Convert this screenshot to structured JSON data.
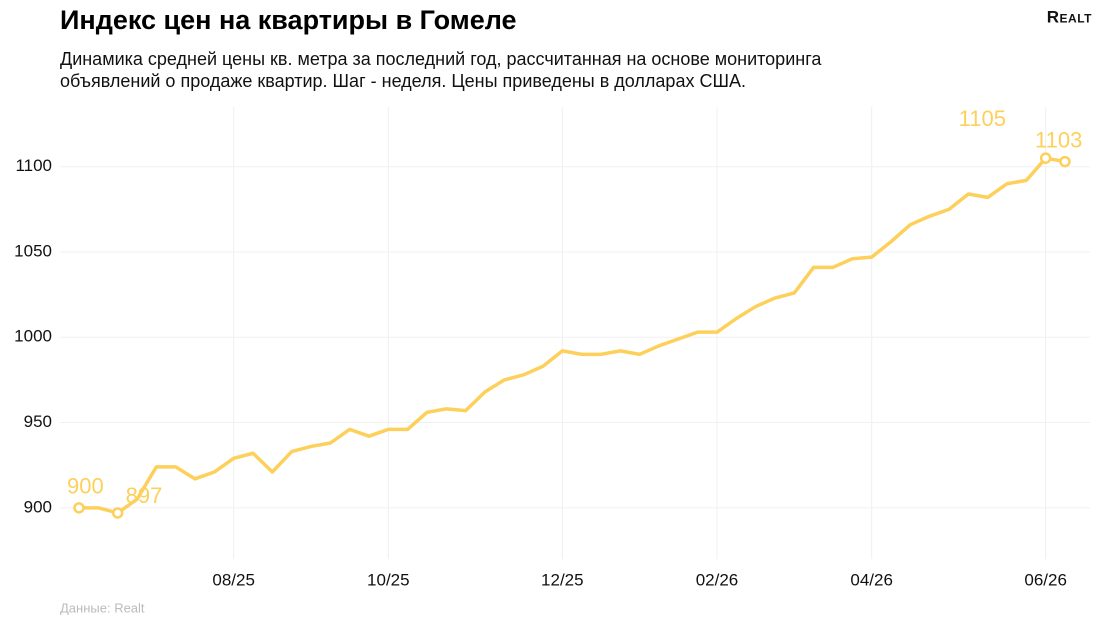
{
  "chart_data": {
    "type": "line",
    "title": "Индекс цен на квартиры в Гомеле",
    "subtitle": [
      "Динамика средней цены кв. метра за последний год, рассчитанная на основе мониторинга",
      "объявлений о продаже квартир. Шаг - неделя. Цены приведены в долларах США."
    ],
    "logo": "Realt",
    "source": "Данные: Realt",
    "categories": [
      null,
      null,
      null,
      null,
      null,
      null,
      null,
      null,
      "08/25",
      null,
      null,
      null,
      null,
      null,
      null,
      null,
      "10/25",
      null,
      null,
      null,
      null,
      null,
      null,
      null,
      null,
      "12/25",
      null,
      null,
      null,
      null,
      null,
      null,
      null,
      "02/26",
      null,
      null,
      null,
      null,
      null,
      null,
      null,
      "04/26",
      null,
      null,
      null,
      null,
      null,
      null,
      null,
      null,
      "06/26",
      null
    ],
    "values": [
      900,
      900,
      897,
      905,
      924,
      924,
      917,
      921,
      929,
      932,
      921,
      933,
      936,
      938,
      946,
      942,
      946,
      946,
      956,
      958,
      957,
      968,
      975,
      978,
      983,
      992,
      990,
      990,
      992,
      990,
      995,
      999,
      1003,
      1003,
      1011,
      1018,
      1023,
      1026,
      1041,
      1041,
      1046,
      1047,
      1056,
      1066,
      1071,
      1075,
      1084,
      1082,
      1090,
      1092,
      1105,
      1103
    ],
    "color": "#fcd05a",
    "labeled_points": [
      0,
      2,
      50,
      51
    ],
    "ylim": [
      870,
      1135
    ],
    "yticks": [
      900,
      950,
      1000,
      1050,
      1100
    ],
    "grid": true
  }
}
